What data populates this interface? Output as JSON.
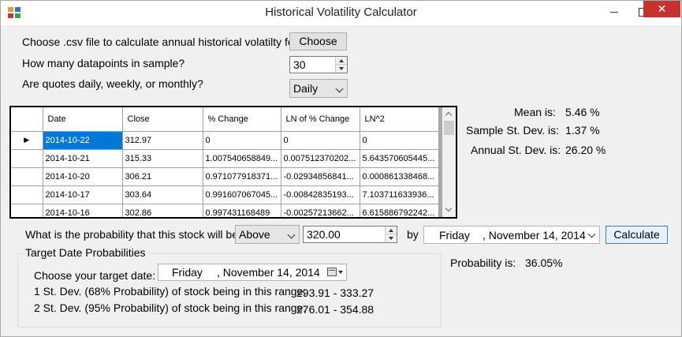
{
  "window": {
    "title": "Historical Volatility Calculator",
    "close_glyph": "✕",
    "icons": [
      "app-icon",
      "minimize-icon",
      "maximize-icon",
      "close-icon"
    ]
  },
  "file": {
    "label": "Choose .csv file to calculate annual historical volatilty for",
    "button": "Choose"
  },
  "datapoints": {
    "label": "How many datapoints in sample?",
    "value": "30"
  },
  "frequency": {
    "label": "Are quotes daily, weekly, or monthly?",
    "selected": "Daily"
  },
  "grid": {
    "columns": [
      "Date",
      "Close",
      "% Change",
      "LN of % Change",
      "LN^2"
    ],
    "current_row_glyph": "▶",
    "rows": [
      [
        "2014-10-22",
        "312.97",
        "0",
        "0",
        "0"
      ],
      [
        "2014-10-21",
        "315.33",
        "1.007540658849...",
        "0.007512370202...",
        "5.643570605445..."
      ],
      [
        "2014-10-20",
        "306.21",
        "0.971077918371...",
        "-0.02934856841...",
        "0.000861338468..."
      ],
      [
        "2014-10-17",
        "303.64",
        "0.991607067045...",
        "-0.00842835193...",
        "7.103711633936..."
      ],
      [
        "2014-10-16",
        "302.86",
        "0.997431168489",
        "-0.00257213662...",
        "6.615886792242..."
      ]
    ]
  },
  "stats": {
    "mean_label": "Mean is:",
    "mean_value": "5.46 %",
    "sample_sd_label": "Sample St. Dev. is:",
    "sample_sd_value": "1.37 %",
    "annual_sd_label": "Annual St. Dev. is:",
    "annual_sd_value": "26.20 %"
  },
  "probability": {
    "question": "What is the probability that this stock will be",
    "direction": "Above",
    "price": "320.00",
    "by_label": "by",
    "date_day": "Friday",
    "date_rest": ", November 14, 2014",
    "calculate_button": "Calculate",
    "result_label": "Probability is:",
    "result_value": "36.05%"
  },
  "target": {
    "group_title": "Target Date Probabilities",
    "choose_label": "Choose your target date:",
    "date_day": "Friday",
    "date_rest": ", November 14, 2014",
    "sd1_label": "1 St. Dev. (68% Probability) of stock being in this range:",
    "sd1_range": "293.91 - 333.27",
    "sd2_label": "2 St. Dev. (95% Probability) of stock being in this range:",
    "sd2_range": "276.01 - 354.88"
  }
}
